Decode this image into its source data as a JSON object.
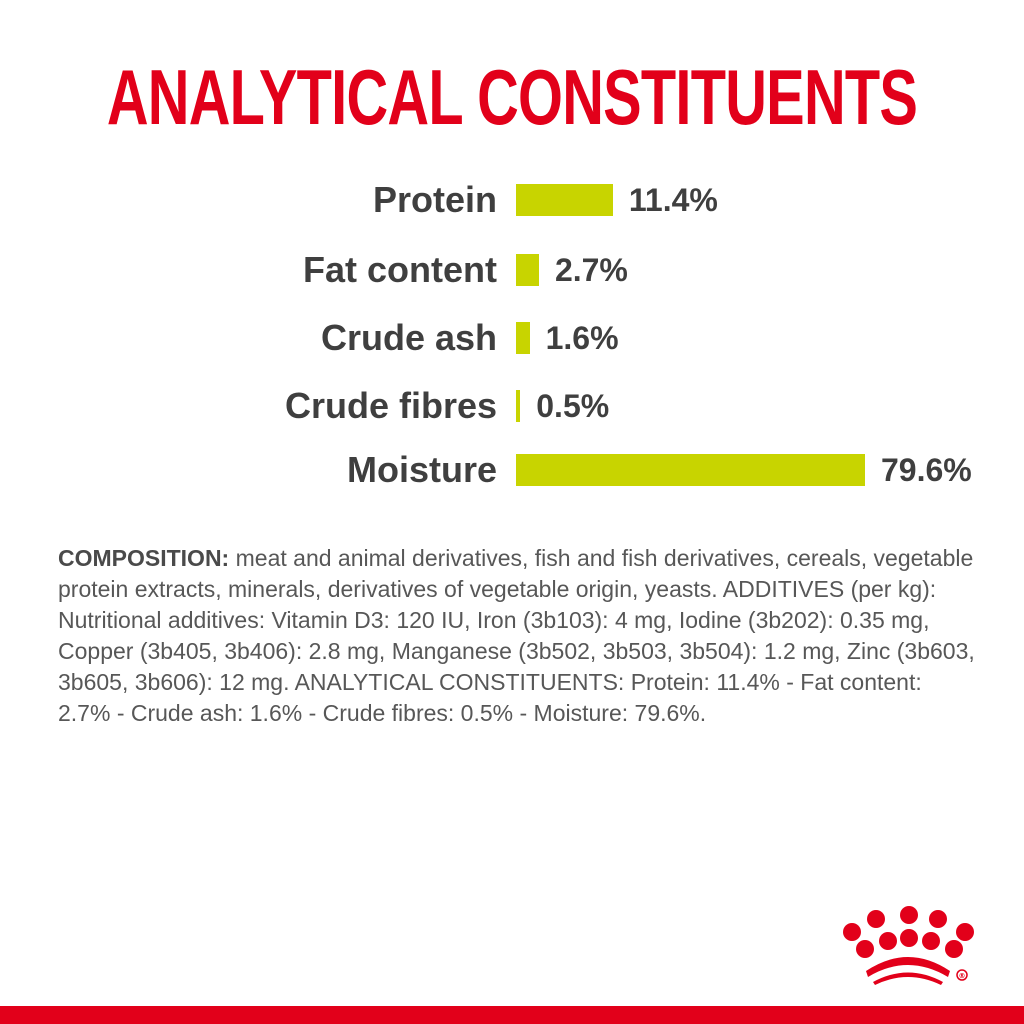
{
  "brand_color": "#e2001a",
  "bar_color": "#c8d400",
  "chart_data": {
    "type": "bar",
    "orientation": "horizontal",
    "title": "ANALYTICAL CONSTITUENTS",
    "categories": [
      "Protein",
      "Fat content",
      "Crude ash",
      "Crude fibres",
      "Moisture"
    ],
    "values": [
      11.4,
      2.7,
      1.6,
      0.5,
      79.6
    ],
    "value_labels": [
      "11.4%",
      "2.7%",
      "1.6%",
      "0.5%",
      "79.6%"
    ],
    "unit": "%",
    "grid": false
  },
  "composition": {
    "heading": "COMPOSITION:",
    "lines": [
      " meat and animal derivatives, fish and fish derivatives, cereals, vegetable",
      "protein extracts, minerals, derivatives of vegetable origin, yeasts. ADDITIVES (per kg):",
      "Nutritional additives: Vitamin D3: 120 IU, Iron (3b103): 4 mg, Iodine (3b202): 0.35 mg, Copper",
      "(3b405, 3b406): 2.8 mg, Manganese (3b502, 3b503, 3b504): 1.2 mg, Zinc (3b603, 3b605,",
      "3b606): 12 mg. ANALYTICAL CONSTITUENTS: Protein: 11.4% - Fat content: 2.7% - Crude ash:",
      "1.6% - Crude fibres: 0.5% - Moisture: 79.6%."
    ]
  },
  "logo": {
    "name": "crown-logo",
    "mark": "®"
  }
}
